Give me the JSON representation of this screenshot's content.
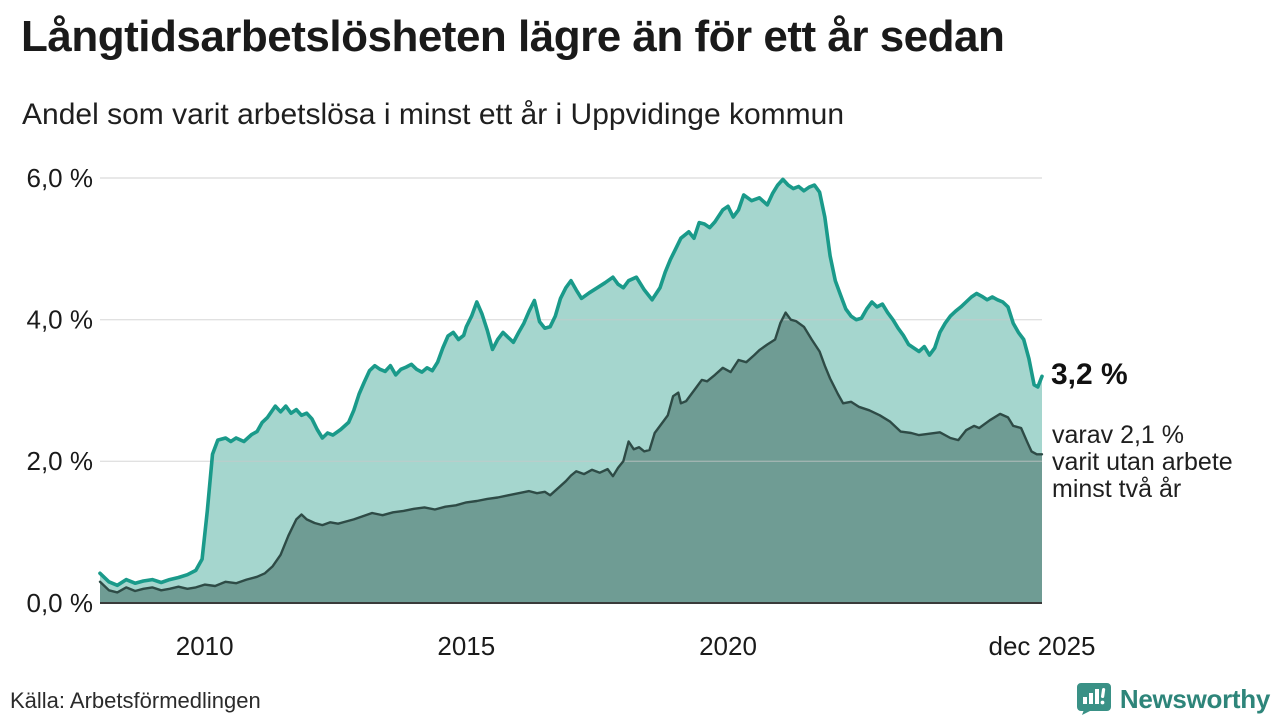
{
  "header": {
    "title": "Långtidsarbetslösheten lägre än för ett år sedan",
    "subtitle": "Andel som varit arbetslösa i minst ett år i Uppvidinge kommun"
  },
  "annotation": {
    "value_label": "3,2 %",
    "note_lines": [
      "varav 2,1 %",
      "varit utan arbete",
      "minst två år"
    ]
  },
  "footer": {
    "source": "Källa: Arbetsförmedlingen",
    "brand": "Newsworthy"
  },
  "colors": {
    "series1_line": "#1a9a8a",
    "series1_fill": "#a5d6ce",
    "series2_line": "#2e4b46",
    "series2_fill": "#6f9c94",
    "gridline": "#c9c9c9",
    "baseline": "#3a3a3a",
    "brand_teal": "#2e857a"
  },
  "chart_data": {
    "type": "area",
    "title": "Långtidsarbetslösheten lägre än för ett år sedan",
    "subtitle": "Andel som varit arbetslösa i minst ett år i Uppvidinge kommun",
    "x_range": [
      2008,
      2026
    ],
    "ylim": [
      0,
      6
    ],
    "grid": "horizontal",
    "legend_position": "none",
    "y_ticks": [
      {
        "label": "0,0 %",
        "value": 0
      },
      {
        "label": "2,0 %",
        "value": 2
      },
      {
        "label": "4,0 %",
        "value": 4
      },
      {
        "label": "6,0 %",
        "value": 6
      }
    ],
    "x_ticks": [
      {
        "label": "2010",
        "year": 2010
      },
      {
        "label": "2015",
        "year": 2015
      },
      {
        "label": "2020",
        "year": 2020
      },
      {
        "label": "dec 2025",
        "year": 2026
      }
    ],
    "series": [
      {
        "name": "Andel arbetslösa minst ett år",
        "end_value_pct": 3.2,
        "points": [
          [
            2008.0,
            0.42
          ],
          [
            2008.17,
            0.3
          ],
          [
            2008.33,
            0.25
          ],
          [
            2008.5,
            0.33
          ],
          [
            2008.67,
            0.28
          ],
          [
            2008.83,
            0.31
          ],
          [
            2009.0,
            0.33
          ],
          [
            2009.17,
            0.29
          ],
          [
            2009.33,
            0.33
          ],
          [
            2009.5,
            0.36
          ],
          [
            2009.67,
            0.4
          ],
          [
            2009.83,
            0.46
          ],
          [
            2009.95,
            0.62
          ],
          [
            2010.05,
            1.3
          ],
          [
            2010.15,
            2.1
          ],
          [
            2010.25,
            2.3
          ],
          [
            2010.4,
            2.33
          ],
          [
            2010.5,
            2.28
          ],
          [
            2010.6,
            2.33
          ],
          [
            2010.75,
            2.28
          ],
          [
            2010.9,
            2.38
          ],
          [
            2011.0,
            2.42
          ],
          [
            2011.1,
            2.55
          ],
          [
            2011.2,
            2.62
          ],
          [
            2011.35,
            2.78
          ],
          [
            2011.45,
            2.7
          ],
          [
            2011.55,
            2.78
          ],
          [
            2011.65,
            2.68
          ],
          [
            2011.75,
            2.73
          ],
          [
            2011.85,
            2.65
          ],
          [
            2011.95,
            2.68
          ],
          [
            2012.05,
            2.6
          ],
          [
            2012.15,
            2.45
          ],
          [
            2012.25,
            2.33
          ],
          [
            2012.35,
            2.4
          ],
          [
            2012.45,
            2.37
          ],
          [
            2012.6,
            2.45
          ],
          [
            2012.75,
            2.55
          ],
          [
            2012.85,
            2.72
          ],
          [
            2012.95,
            2.95
          ],
          [
            2013.05,
            3.12
          ],
          [
            2013.15,
            3.28
          ],
          [
            2013.25,
            3.35
          ],
          [
            2013.35,
            3.3
          ],
          [
            2013.45,
            3.27
          ],
          [
            2013.55,
            3.35
          ],
          [
            2013.65,
            3.22
          ],
          [
            2013.75,
            3.3
          ],
          [
            2013.85,
            3.33
          ],
          [
            2013.95,
            3.37
          ],
          [
            2014.05,
            3.3
          ],
          [
            2014.15,
            3.26
          ],
          [
            2014.25,
            3.32
          ],
          [
            2014.35,
            3.28
          ],
          [
            2014.45,
            3.4
          ],
          [
            2014.55,
            3.6
          ],
          [
            2014.65,
            3.77
          ],
          [
            2014.75,
            3.82
          ],
          [
            2014.85,
            3.72
          ],
          [
            2014.95,
            3.78
          ],
          [
            2015.0,
            3.9
          ],
          [
            2015.1,
            4.05
          ],
          [
            2015.2,
            4.25
          ],
          [
            2015.3,
            4.08
          ],
          [
            2015.4,
            3.85
          ],
          [
            2015.5,
            3.58
          ],
          [
            2015.6,
            3.72
          ],
          [
            2015.7,
            3.82
          ],
          [
            2015.8,
            3.75
          ],
          [
            2015.9,
            3.68
          ],
          [
            2016.0,
            3.82
          ],
          [
            2016.1,
            3.95
          ],
          [
            2016.2,
            4.12
          ],
          [
            2016.3,
            4.27
          ],
          [
            2016.4,
            3.97
          ],
          [
            2016.5,
            3.88
          ],
          [
            2016.6,
            3.9
          ],
          [
            2016.7,
            4.05
          ],
          [
            2016.8,
            4.3
          ],
          [
            2016.9,
            4.45
          ],
          [
            2017.0,
            4.55
          ],
          [
            2017.1,
            4.42
          ],
          [
            2017.2,
            4.3
          ],
          [
            2017.35,
            4.38
          ],
          [
            2017.5,
            4.45
          ],
          [
            2017.65,
            4.52
          ],
          [
            2017.8,
            4.6
          ],
          [
            2017.9,
            4.5
          ],
          [
            2018.0,
            4.45
          ],
          [
            2018.1,
            4.55
          ],
          [
            2018.25,
            4.6
          ],
          [
            2018.4,
            4.42
          ],
          [
            2018.55,
            4.28
          ],
          [
            2018.7,
            4.45
          ],
          [
            2018.8,
            4.67
          ],
          [
            2018.9,
            4.85
          ],
          [
            2019.0,
            5.0
          ],
          [
            2019.1,
            5.15
          ],
          [
            2019.25,
            5.24
          ],
          [
            2019.35,
            5.15
          ],
          [
            2019.45,
            5.37
          ],
          [
            2019.55,
            5.35
          ],
          [
            2019.65,
            5.3
          ],
          [
            2019.75,
            5.38
          ],
          [
            2019.9,
            5.55
          ],
          [
            2020.0,
            5.6
          ],
          [
            2020.1,
            5.45
          ],
          [
            2020.2,
            5.55
          ],
          [
            2020.3,
            5.76
          ],
          [
            2020.45,
            5.68
          ],
          [
            2020.6,
            5.72
          ],
          [
            2020.75,
            5.62
          ],
          [
            2020.85,
            5.78
          ],
          [
            2020.95,
            5.9
          ],
          [
            2021.05,
            5.98
          ],
          [
            2021.15,
            5.9
          ],
          [
            2021.25,
            5.85
          ],
          [
            2021.35,
            5.88
          ],
          [
            2021.45,
            5.82
          ],
          [
            2021.55,
            5.87
          ],
          [
            2021.65,
            5.9
          ],
          [
            2021.75,
            5.8
          ],
          [
            2021.85,
            5.45
          ],
          [
            2021.95,
            4.9
          ],
          [
            2022.05,
            4.55
          ],
          [
            2022.15,
            4.35
          ],
          [
            2022.25,
            4.15
          ],
          [
            2022.35,
            4.05
          ],
          [
            2022.45,
            4.0
          ],
          [
            2022.55,
            4.02
          ],
          [
            2022.65,
            4.15
          ],
          [
            2022.75,
            4.25
          ],
          [
            2022.85,
            4.18
          ],
          [
            2022.95,
            4.22
          ],
          [
            2023.05,
            4.1
          ],
          [
            2023.15,
            4.0
          ],
          [
            2023.25,
            3.88
          ],
          [
            2023.35,
            3.78
          ],
          [
            2023.45,
            3.65
          ],
          [
            2023.55,
            3.6
          ],
          [
            2023.65,
            3.55
          ],
          [
            2023.75,
            3.62
          ],
          [
            2023.85,
            3.5
          ],
          [
            2023.95,
            3.6
          ],
          [
            2024.05,
            3.82
          ],
          [
            2024.15,
            3.95
          ],
          [
            2024.25,
            4.05
          ],
          [
            2024.35,
            4.12
          ],
          [
            2024.45,
            4.18
          ],
          [
            2024.55,
            4.25
          ],
          [
            2024.65,
            4.32
          ],
          [
            2024.75,
            4.37
          ],
          [
            2024.85,
            4.33
          ],
          [
            2024.95,
            4.28
          ],
          [
            2025.05,
            4.32
          ],
          [
            2025.15,
            4.28
          ],
          [
            2025.25,
            4.25
          ],
          [
            2025.35,
            4.18
          ],
          [
            2025.45,
            3.95
          ],
          [
            2025.55,
            3.82
          ],
          [
            2025.65,
            3.72
          ],
          [
            2025.75,
            3.45
          ],
          [
            2025.85,
            3.08
          ],
          [
            2025.92,
            3.05
          ],
          [
            2026.0,
            3.2
          ]
        ]
      },
      {
        "name": "Andel arbetslösa minst två år",
        "end_value_pct": 2.1,
        "points": [
          [
            2008.0,
            0.3
          ],
          [
            2008.17,
            0.18
          ],
          [
            2008.33,
            0.15
          ],
          [
            2008.5,
            0.22
          ],
          [
            2008.67,
            0.17
          ],
          [
            2008.83,
            0.2
          ],
          [
            2009.0,
            0.22
          ],
          [
            2009.17,
            0.18
          ],
          [
            2009.33,
            0.2
          ],
          [
            2009.5,
            0.23
          ],
          [
            2009.67,
            0.2
          ],
          [
            2009.83,
            0.22
          ],
          [
            2010.0,
            0.26
          ],
          [
            2010.2,
            0.24
          ],
          [
            2010.4,
            0.3
          ],
          [
            2010.6,
            0.28
          ],
          [
            2010.8,
            0.33
          ],
          [
            2011.0,
            0.37
          ],
          [
            2011.15,
            0.42
          ],
          [
            2011.3,
            0.52
          ],
          [
            2011.45,
            0.68
          ],
          [
            2011.6,
            0.95
          ],
          [
            2011.75,
            1.18
          ],
          [
            2011.85,
            1.25
          ],
          [
            2011.95,
            1.18
          ],
          [
            2012.1,
            1.13
          ],
          [
            2012.25,
            1.1
          ],
          [
            2012.4,
            1.14
          ],
          [
            2012.55,
            1.12
          ],
          [
            2012.7,
            1.15
          ],
          [
            2012.85,
            1.18
          ],
          [
            2013.0,
            1.22
          ],
          [
            2013.2,
            1.27
          ],
          [
            2013.4,
            1.24
          ],
          [
            2013.6,
            1.28
          ],
          [
            2013.8,
            1.3
          ],
          [
            2014.0,
            1.33
          ],
          [
            2014.2,
            1.35
          ],
          [
            2014.4,
            1.32
          ],
          [
            2014.6,
            1.36
          ],
          [
            2014.8,
            1.38
          ],
          [
            2015.0,
            1.42
          ],
          [
            2015.2,
            1.44
          ],
          [
            2015.4,
            1.47
          ],
          [
            2015.6,
            1.49
          ],
          [
            2015.8,
            1.52
          ],
          [
            2016.0,
            1.55
          ],
          [
            2016.2,
            1.58
          ],
          [
            2016.35,
            1.55
          ],
          [
            2016.5,
            1.57
          ],
          [
            2016.6,
            1.52
          ],
          [
            2016.75,
            1.62
          ],
          [
            2016.9,
            1.72
          ],
          [
            2017.0,
            1.8
          ],
          [
            2017.1,
            1.86
          ],
          [
            2017.25,
            1.82
          ],
          [
            2017.4,
            1.88
          ],
          [
            2017.55,
            1.84
          ],
          [
            2017.7,
            1.89
          ],
          [
            2017.8,
            1.79
          ],
          [
            2017.9,
            1.91
          ],
          [
            2018.0,
            2.0
          ],
          [
            2018.1,
            2.28
          ],
          [
            2018.2,
            2.17
          ],
          [
            2018.3,
            2.2
          ],
          [
            2018.4,
            2.14
          ],
          [
            2018.5,
            2.16
          ],
          [
            2018.6,
            2.4
          ],
          [
            2018.75,
            2.55
          ],
          [
            2018.85,
            2.65
          ],
          [
            2018.95,
            2.92
          ],
          [
            2019.05,
            2.97
          ],
          [
            2019.1,
            2.82
          ],
          [
            2019.2,
            2.85
          ],
          [
            2019.3,
            2.95
          ],
          [
            2019.4,
            3.05
          ],
          [
            2019.5,
            3.15
          ],
          [
            2019.6,
            3.13
          ],
          [
            2019.75,
            3.22
          ],
          [
            2019.9,
            3.32
          ],
          [
            2020.05,
            3.26
          ],
          [
            2020.2,
            3.43
          ],
          [
            2020.35,
            3.4
          ],
          [
            2020.5,
            3.5
          ],
          [
            2020.6,
            3.57
          ],
          [
            2020.75,
            3.65
          ],
          [
            2020.9,
            3.72
          ],
          [
            2021.0,
            3.95
          ],
          [
            2021.1,
            4.1
          ],
          [
            2021.2,
            4.0
          ],
          [
            2021.3,
            3.98
          ],
          [
            2021.45,
            3.9
          ],
          [
            2021.6,
            3.72
          ],
          [
            2021.75,
            3.55
          ],
          [
            2021.85,
            3.35
          ],
          [
            2021.95,
            3.17
          ],
          [
            2022.1,
            2.95
          ],
          [
            2022.2,
            2.82
          ],
          [
            2022.35,
            2.84
          ],
          [
            2022.5,
            2.77
          ],
          [
            2022.7,
            2.72
          ],
          [
            2022.9,
            2.65
          ],
          [
            2023.1,
            2.56
          ],
          [
            2023.3,
            2.42
          ],
          [
            2023.5,
            2.4
          ],
          [
            2023.65,
            2.37
          ],
          [
            2023.85,
            2.39
          ],
          [
            2024.05,
            2.41
          ],
          [
            2024.25,
            2.33
          ],
          [
            2024.4,
            2.3
          ],
          [
            2024.55,
            2.44
          ],
          [
            2024.7,
            2.5
          ],
          [
            2024.8,
            2.47
          ],
          [
            2025.0,
            2.58
          ],
          [
            2025.2,
            2.67
          ],
          [
            2025.35,
            2.62
          ],
          [
            2025.45,
            2.5
          ],
          [
            2025.6,
            2.47
          ],
          [
            2025.72,
            2.27
          ],
          [
            2025.8,
            2.14
          ],
          [
            2025.9,
            2.1
          ],
          [
            2026.0,
            2.1
          ]
        ]
      }
    ],
    "annotations": [
      {
        "text": "3,2 %",
        "attach": "series1-end"
      },
      {
        "text": "varav 2,1 % varit utan arbete minst två år",
        "attach": "series2-end"
      }
    ]
  }
}
